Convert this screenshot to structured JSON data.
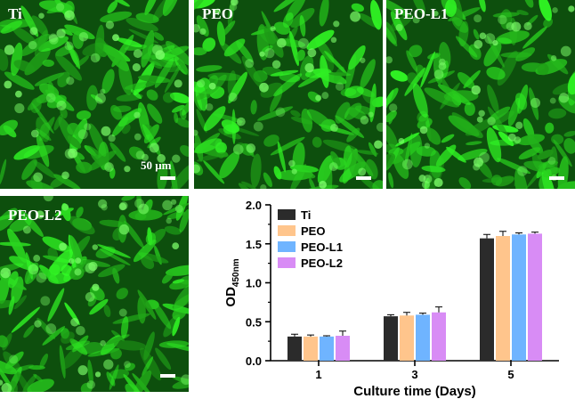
{
  "panels": [
    {
      "label": "Ti",
      "scale_label": "50 μm"
    },
    {
      "label": "PEO"
    },
    {
      "label": "PEO-L1"
    },
    {
      "label": "PEO-L2"
    }
  ],
  "chart_data": {
    "type": "bar",
    "categories": [
      "1",
      "3",
      "5"
    ],
    "series": [
      {
        "name": "Ti",
        "values": [
          0.31,
          0.57,
          1.57
        ],
        "errors": [
          0.03,
          0.02,
          0.05
        ],
        "color": "#2b2b2b"
      },
      {
        "name": "PEO",
        "values": [
          0.31,
          0.58,
          1.6
        ],
        "errors": [
          0.02,
          0.04,
          0.06
        ],
        "color": "#ffc58c"
      },
      {
        "name": "PEO-L1",
        "values": [
          0.31,
          0.59,
          1.62
        ],
        "errors": [
          0.01,
          0.02,
          0.02
        ],
        "color": "#6fb4ff"
      },
      {
        "name": "PEO-L2",
        "values": [
          0.32,
          0.62,
          1.63
        ],
        "errors": [
          0.06,
          0.07,
          0.02
        ],
        "color": "#d88cf5"
      }
    ],
    "xlabel": "Culture time (Days)",
    "ylabel": "OD",
    "ylabel_subscript": "450nm",
    "ylim": [
      0,
      2.0
    ],
    "yticks": [
      "0.0",
      "0.5",
      "1.0",
      "1.5",
      "2.0"
    ],
    "legend": "top-left",
    "grid": false
  }
}
